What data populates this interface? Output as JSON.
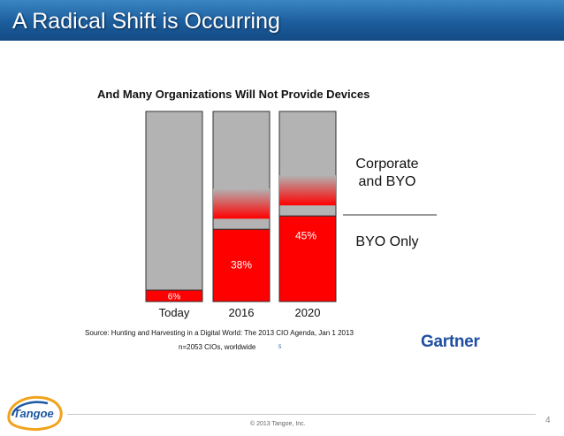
{
  "slide": {
    "title": "A Radical Shift is Occurring",
    "source": "Source: Hunting and Harvesting in a Digital World: The 2013 CIO Agenda, Jan 1 2013",
    "sample": "n=2053 CIOs, worldwide",
    "sample_note": "5",
    "gartner": "Gartner",
    "logo_text": "Tangoe",
    "copyright": "© 2013 Tangoe, Inc.",
    "page_number": "4"
  },
  "colors": {
    "banner": "#1c5d9d",
    "byo": "#ff0000",
    "corporate": "#b3b3b3",
    "gartner": "#1f4fa0"
  },
  "chart_data": {
    "type": "bar",
    "stacked": true,
    "title": "And Many Organizations Will Not Provide Devices",
    "categories": [
      "Today",
      "2016",
      "2020"
    ],
    "series": [
      {
        "name": "BYO Only",
        "values": [
          6,
          38,
          45
        ],
        "data_labels": [
          "6%",
          "38%",
          "45%"
        ]
      },
      {
        "name": "Corporate and BYO",
        "values": [
          94,
          62,
          55
        ]
      }
    ],
    "ylim": [
      0,
      100
    ],
    "legend_position": "right"
  }
}
